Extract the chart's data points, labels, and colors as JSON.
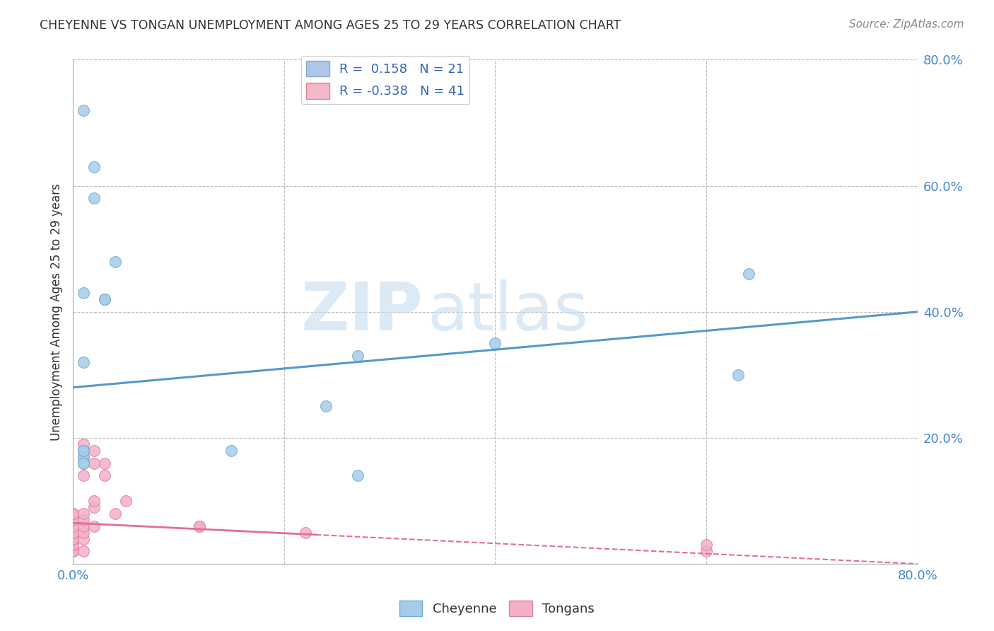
{
  "title": "CHEYENNE VS TONGAN UNEMPLOYMENT AMONG AGES 25 TO 29 YEARS CORRELATION CHART",
  "source": "Source: ZipAtlas.com",
  "ylabel": "Unemployment Among Ages 25 to 29 years",
  "xlim": [
    0.0,
    0.8
  ],
  "ylim": [
    0.0,
    0.8
  ],
  "xticks": [
    0.0,
    0.2,
    0.4,
    0.6,
    0.8
  ],
  "yticks": [
    0.0,
    0.2,
    0.4,
    0.6,
    0.8
  ],
  "xticklabels": [
    "0.0%",
    "",
    "",
    "",
    "80.0%"
  ],
  "yticklabels": [
    "",
    "20.0%",
    "40.0%",
    "60.0%",
    "80.0%"
  ],
  "watermark_zip": "ZIP",
  "watermark_atlas": "atlas",
  "legend_entries": [
    {
      "label_r": "R =  0.158",
      "label_n": "N = 21",
      "color": "#aec6e8"
    },
    {
      "label_r": "R = -0.338",
      "label_n": "N = 41",
      "color": "#f4b8c8"
    }
  ],
  "cheyenne_scatter_x": [
    0.01,
    0.02,
    0.02,
    0.04,
    0.01,
    0.03,
    0.03,
    0.4,
    0.01,
    0.24,
    0.01,
    0.01,
    0.01,
    0.01,
    0.64,
    0.63,
    0.27,
    0.27,
    0.01,
    0.01,
    0.15
  ],
  "cheyenne_scatter_y": [
    0.72,
    0.63,
    0.58,
    0.48,
    0.43,
    0.42,
    0.42,
    0.35,
    0.32,
    0.25,
    0.18,
    0.17,
    0.16,
    0.16,
    0.46,
    0.3,
    0.33,
    0.14,
    0.18,
    0.18,
    0.18
  ],
  "tongan_scatter_x": [
    0.0,
    0.0,
    0.0,
    0.0,
    0.0,
    0.0,
    0.0,
    0.0,
    0.0,
    0.0,
    0.0,
    0.0,
    0.0,
    0.0,
    0.0,
    0.0,
    0.0,
    0.01,
    0.01,
    0.01,
    0.01,
    0.01,
    0.01,
    0.01,
    0.01,
    0.01,
    0.01,
    0.02,
    0.02,
    0.02,
    0.02,
    0.02,
    0.03,
    0.03,
    0.04,
    0.05,
    0.12,
    0.12,
    0.22,
    0.6,
    0.6
  ],
  "tongan_scatter_y": [
    0.02,
    0.02,
    0.02,
    0.03,
    0.03,
    0.03,
    0.03,
    0.04,
    0.04,
    0.04,
    0.05,
    0.05,
    0.06,
    0.07,
    0.07,
    0.08,
    0.08,
    0.02,
    0.04,
    0.05,
    0.06,
    0.07,
    0.08,
    0.14,
    0.17,
    0.18,
    0.19,
    0.06,
    0.09,
    0.1,
    0.16,
    0.18,
    0.14,
    0.16,
    0.08,
    0.1,
    0.06,
    0.06,
    0.05,
    0.02,
    0.03
  ],
  "cheyenne_color": "#a8cce8",
  "cheyenne_edge": "#6aaed6",
  "tongan_color": "#f4b0c8",
  "tongan_edge": "#e080a0",
  "cheyenne_line_color": "#5599cc",
  "tongan_line_color": "#e07090",
  "scatter_size": 130,
  "background_color": "#ffffff",
  "grid_color": "#bbbbbb",
  "title_color": "#333333",
  "axis_tick_color": "#4488cc",
  "legend_text_color": "#3366bb"
}
